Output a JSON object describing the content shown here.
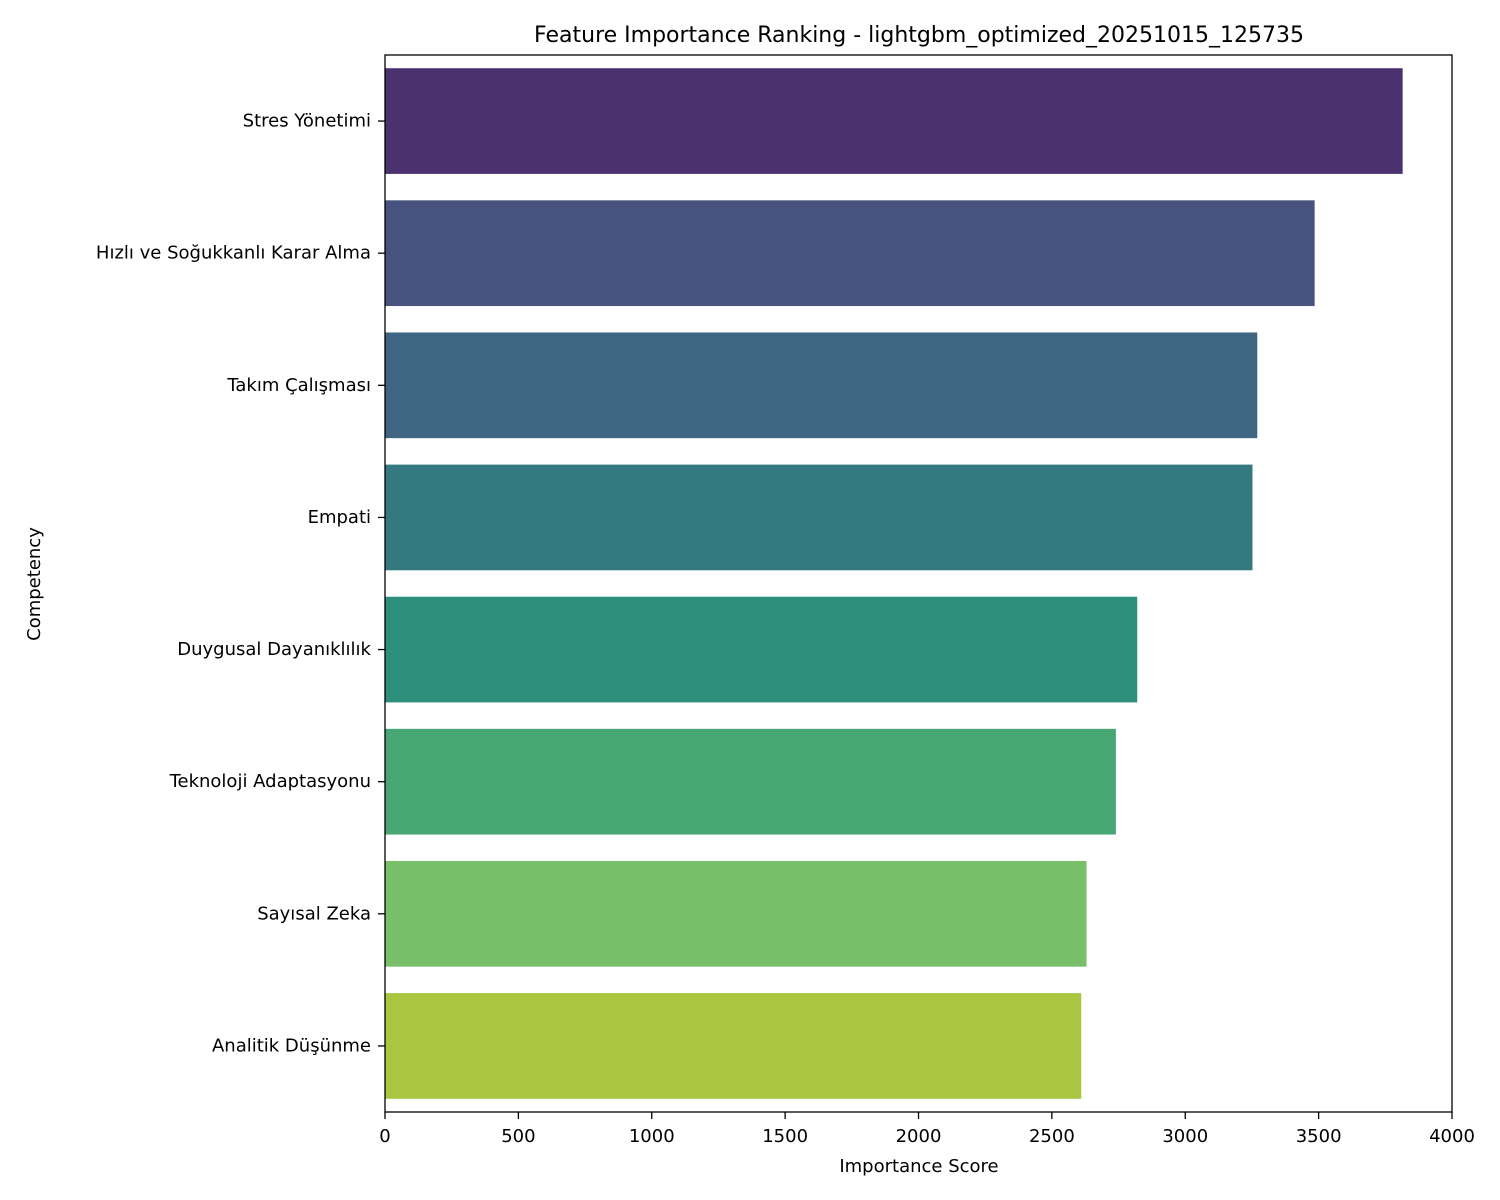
{
  "chart_data": {
    "type": "bar",
    "orientation": "horizontal",
    "title": "Feature Importance Ranking - lightgbm_optimized_20251015_125735",
    "xlabel": "Importance Score",
    "ylabel": "Competency",
    "xlim": [
      0,
      4000
    ],
    "xticks": [
      0,
      500,
      1000,
      1500,
      2000,
      2500,
      3000,
      3500,
      4000
    ],
    "grid": false,
    "categories": [
      "Stres Yönetimi",
      "Hızlı ve Soğukkanlı Karar Alma",
      "Takım Çalışması",
      "Empati",
      "Duygusal Dayanıklılık",
      "Teknoloji Adaptasyonu",
      "Sayısal Zeka",
      "Analitik Düşünme"
    ],
    "values": [
      3815,
      3485,
      3270,
      3252,
      2820,
      2740,
      2630,
      2610
    ],
    "colors": [
      "#4b326e",
      "#47527f",
      "#3e6682",
      "#347980",
      "#2e8f7d",
      "#46a775",
      "#78bf69",
      "#a9c641"
    ]
  }
}
